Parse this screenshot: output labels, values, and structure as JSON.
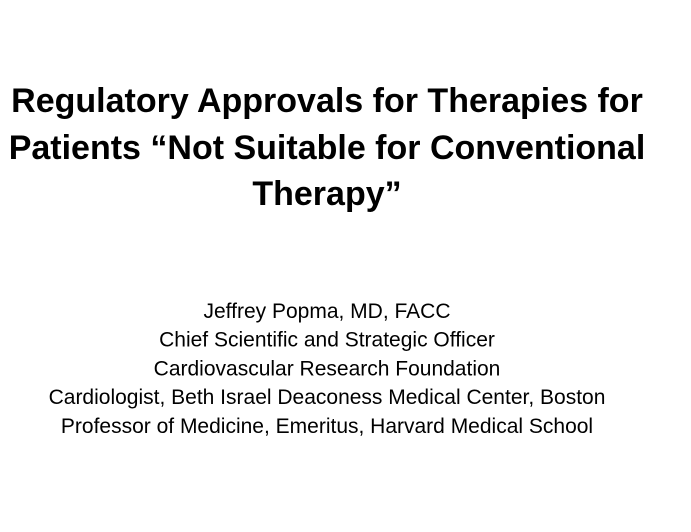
{
  "title": {
    "lines": [
      "Regulatory Approvals for Therapies for",
      "Patients “Not Suitable for Conventional",
      "Therapy”"
    ]
  },
  "presenter": {
    "lines": [
      "Jeffrey Popma, MD, FACC",
      "Chief Scientific and Strategic Officer",
      "Cardiovascular Research Foundation",
      "Cardiologist, Beth Israel Deaconess Medical Center, Boston",
      "Professor of Medicine, Emeritus, Harvard Medical School"
    ]
  }
}
